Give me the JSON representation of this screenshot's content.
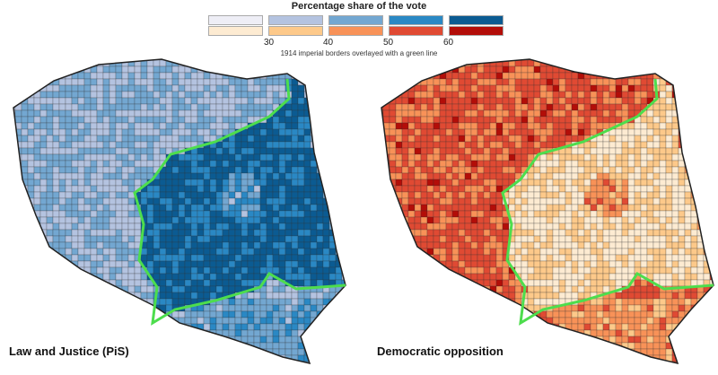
{
  "legend": {
    "title": "Percentage share of the vote",
    "ticks": [
      "30",
      "40",
      "50",
      "60"
    ],
    "pis_colors": [
      "#eeeef6",
      "#b4c3e0",
      "#73a7d1",
      "#2a88c4",
      "#0b5b92"
    ],
    "opp_colors": [
      "#fdebd2",
      "#fdc98a",
      "#f89258",
      "#e04a33",
      "#b30d08"
    ]
  },
  "note": "1914 imperial borders overlayed with a green line",
  "border_color": "#4ddd4d",
  "maps": [
    {
      "label": "Law and Justice (PiS)",
      "palette": "pis_colors"
    },
    {
      "label": "Democratic opposition",
      "palette": "opp_colors"
    }
  ]
}
